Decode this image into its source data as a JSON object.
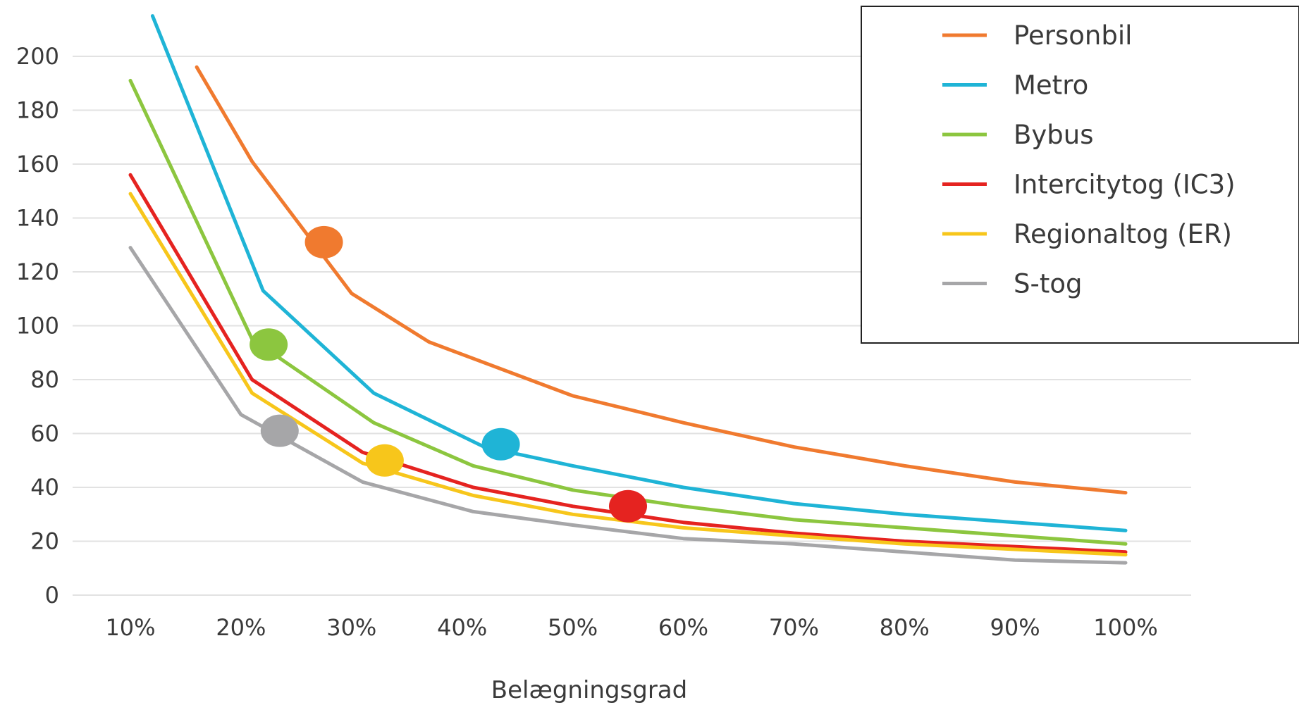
{
  "chart_data": {
    "type": "line",
    "xlabel": "Belægningsgrad",
    "ylabel": "",
    "x_tick_labels": [
      "10%",
      "20%",
      "30%",
      "40%",
      "50%",
      "60%",
      "70%",
      "80%",
      "90%",
      "100%"
    ],
    "y_tick_labels": [
      "0",
      "20",
      "40",
      "60",
      "80",
      "100",
      "120",
      "140",
      "160",
      "180",
      "200"
    ],
    "ylim": [
      0,
      200
    ],
    "xlim": [
      10,
      100
    ],
    "grid": true,
    "legend": "top-right",
    "series": [
      {
        "name": "Personbil",
        "color": "#f07a2f",
        "x": [
          16,
          21,
          30,
          37,
          50,
          60,
          70,
          80,
          90,
          100
        ],
        "y": [
          196,
          161,
          112,
          94,
          74,
          64,
          55,
          48,
          42,
          38
        ],
        "marker": {
          "x": 27.5,
          "y": 131
        }
      },
      {
        "name": "Metro",
        "color": "#1fb4d6",
        "x": [
          12,
          22,
          32,
          42,
          50,
          60,
          70,
          80,
          90,
          100
        ],
        "y": [
          215,
          113,
          75,
          55,
          48,
          40,
          34,
          30,
          27,
          24
        ],
        "marker": {
          "x": 43.5,
          "y": 56
        }
      },
      {
        "name": "Bybus",
        "color": "#8cc63f",
        "x": [
          10,
          21,
          32,
          41,
          50,
          60,
          70,
          80,
          90,
          100
        ],
        "y": [
          191,
          95,
          64,
          48,
          39,
          33,
          28,
          25,
          22,
          19
        ],
        "marker": {
          "x": 22.5,
          "y": 93
        }
      },
      {
        "name": "Intercitytog (IC3)",
        "color": "#e52320",
        "x": [
          10,
          21,
          31,
          41,
          50,
          60,
          70,
          80,
          90,
          100
        ],
        "y": [
          156,
          80,
          53,
          40,
          33,
          27,
          23,
          20,
          18,
          16
        ],
        "marker": {
          "x": 55,
          "y": 33
        }
      },
      {
        "name": "Regionaltog (ER)",
        "color": "#f7c61b",
        "x": [
          10,
          21,
          31,
          41,
          50,
          60,
          70,
          80,
          90,
          100
        ],
        "y": [
          149,
          75,
          49,
          37,
          30,
          25,
          22,
          19,
          17,
          15
        ],
        "marker": {
          "x": 33,
          "y": 50
        }
      },
      {
        "name": "S-tog",
        "color": "#a6a6a8",
        "x": [
          10,
          20,
          31,
          41,
          50,
          60,
          70,
          80,
          90,
          100
        ],
        "y": [
          129,
          67,
          42,
          31,
          26,
          21,
          19,
          16,
          13,
          12
        ],
        "marker": {
          "x": 23.5,
          "y": 61
        }
      }
    ]
  }
}
